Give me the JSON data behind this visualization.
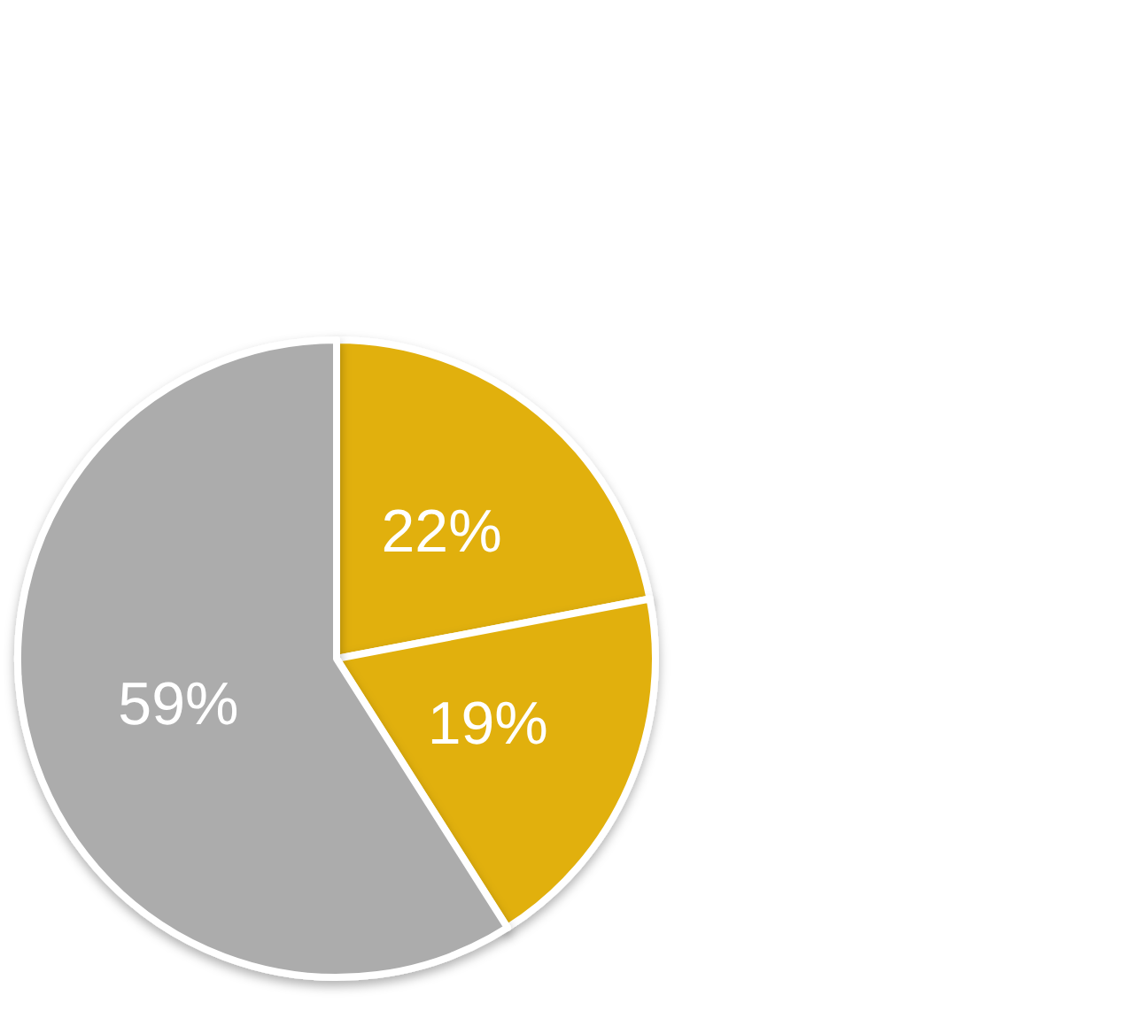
{
  "chart_data": {
    "type": "pie",
    "categories": [
      null,
      null,
      null
    ],
    "values": [
      22,
      19,
      59
    ],
    "colors": [
      "#e1b00f",
      "#e1b00f",
      "#acacac"
    ],
    "value_labels": [
      "22%",
      "19%",
      "59%"
    ]
  }
}
